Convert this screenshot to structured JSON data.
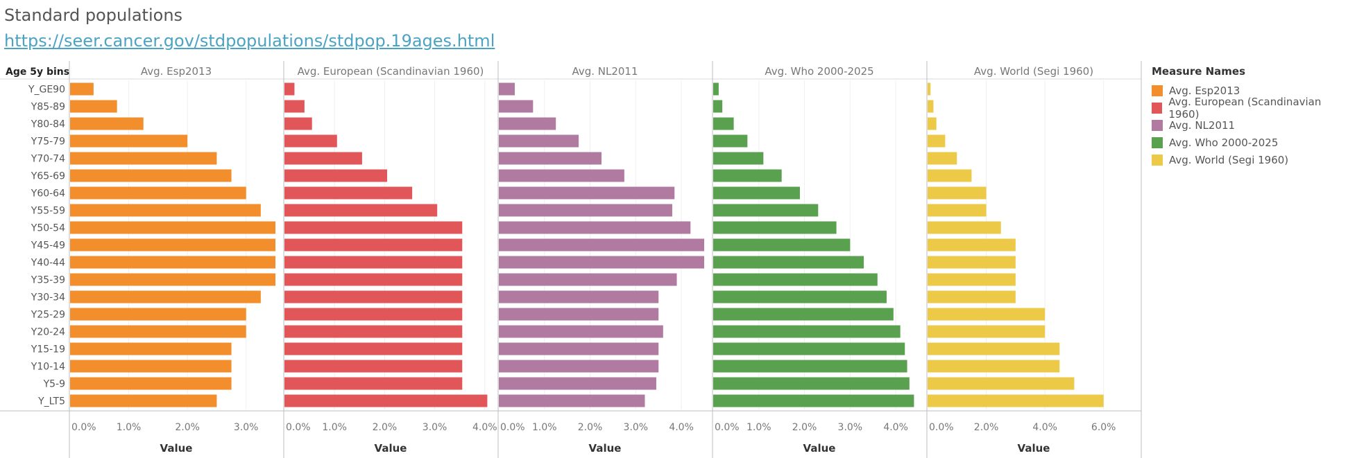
{
  "page": {
    "title": "Standard populations",
    "link": "https://seer.cancer.gov/stdpopulations/stdpop.19ages.html"
  },
  "chart_data": {
    "type": "bar",
    "orientation": "horizontal",
    "row_header": "Age 5y bins",
    "categories": [
      "Y_GE90",
      "Y85-89",
      "Y80-84",
      "Y75-79",
      "Y70-74",
      "Y65-69",
      "Y60-64",
      "Y55-59",
      "Y50-54",
      "Y45-49",
      "Y40-44",
      "Y35-39",
      "Y30-34",
      "Y25-29",
      "Y20-24",
      "Y15-19",
      "Y10-14",
      "Y5-9",
      "Y_LT5"
    ],
    "xlabel": "Value",
    "series": [
      {
        "name": "Avg. Esp2013",
        "color": "#f28e2b",
        "xlim": [
          0,
          3.5
        ],
        "ticks": [
          "0.0%",
          "1.0%",
          "2.0%",
          "3.0%"
        ],
        "tick_values": [
          0,
          1,
          2,
          3
        ],
        "values": [
          0.4,
          0.8,
          1.25,
          2.0,
          2.5,
          2.75,
          3.0,
          3.25,
          3.5,
          3.5,
          3.5,
          3.5,
          3.25,
          3.0,
          3.0,
          2.75,
          2.75,
          2.75,
          2.5
        ]
      },
      {
        "name": "Avg. European (Scandinavian 1960)",
        "color": "#e15759",
        "xlim": [
          0,
          4.1
        ],
        "ticks": [
          "0.0%",
          "1.0%",
          "2.0%",
          "3.0%",
          "4.0%"
        ],
        "tick_values": [
          0,
          1,
          2,
          3,
          4
        ],
        "values": [
          0.2,
          0.4,
          0.55,
          1.05,
          1.55,
          2.05,
          2.55,
          3.05,
          3.55,
          3.55,
          3.55,
          3.55,
          3.55,
          3.55,
          3.55,
          3.55,
          3.55,
          3.55,
          4.05
        ]
      },
      {
        "name": "Avg. NL2011",
        "color": "#b07aa1",
        "xlim": [
          0,
          4.5
        ],
        "ticks": [
          "0.0%",
          "1.0%",
          "2.0%",
          "3.0%",
          "4.0%"
        ],
        "tick_values": [
          0,
          1,
          2,
          3,
          4
        ],
        "values": [
          0.35,
          0.75,
          1.25,
          1.75,
          2.25,
          2.75,
          3.85,
          3.8,
          4.2,
          4.5,
          4.5,
          3.9,
          3.5,
          3.5,
          3.6,
          3.5,
          3.5,
          3.45,
          3.2
        ]
      },
      {
        "name": "Avg. Who 2000-2025",
        "color": "#59a14f",
        "xlim": [
          0,
          4.5
        ],
        "ticks": [
          "0.0%",
          "1.0%",
          "2.0%",
          "3.0%",
          "4.0%"
        ],
        "tick_values": [
          0,
          1,
          2,
          3,
          4
        ],
        "values": [
          0.12,
          0.2,
          0.45,
          0.75,
          1.1,
          1.5,
          1.9,
          2.3,
          2.7,
          3.0,
          3.3,
          3.6,
          3.8,
          3.95,
          4.1,
          4.2,
          4.25,
          4.3,
          4.4
        ]
      },
      {
        "name": "Avg. World (Segi 1960)",
        "color": "#edc948",
        "xlim": [
          0,
          7.0
        ],
        "ticks": [
          "0.0%",
          "2.0%",
          "4.0%",
          "6.0%"
        ],
        "tick_values": [
          0,
          2,
          4,
          6
        ],
        "values": [
          0.1,
          0.2,
          0.3,
          0.6,
          1.0,
          1.5,
          2.0,
          2.0,
          2.5,
          3.0,
          3.0,
          3.0,
          3.0,
          4.0,
          4.0,
          4.5,
          4.5,
          5.0,
          6.0
        ]
      }
    ],
    "legend": {
      "title": "Measure Names",
      "position": "right"
    },
    "grid": true
  }
}
